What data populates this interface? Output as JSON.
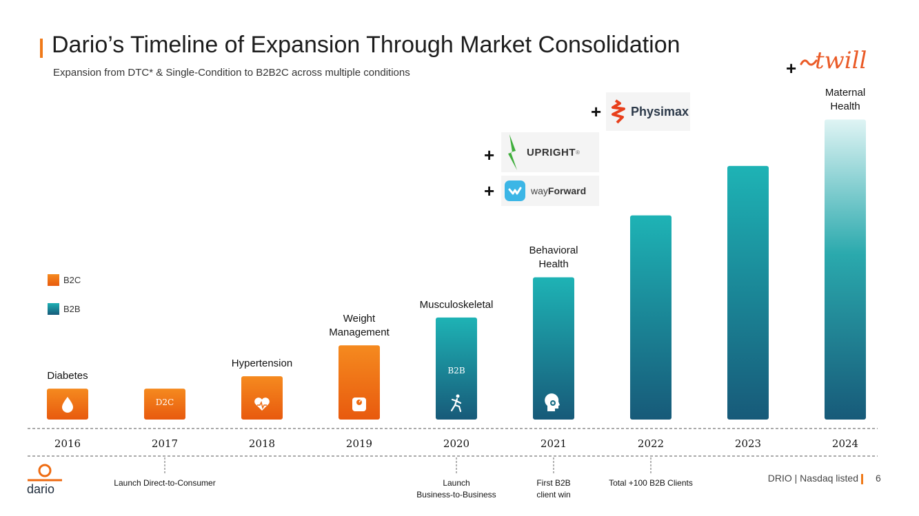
{
  "header": {
    "title": "Dario’s Timeline of Expansion Through Market Consolidation",
    "subtitle": "Expansion from DTC* & Single-Condition to B2B2C across multiple conditions"
  },
  "legend": [
    {
      "label": "B2C",
      "color": "#ee6a10"
    },
    {
      "label": "B2B",
      "color": "#1a8a96"
    }
  ],
  "chart_data": {
    "type": "bar",
    "title": "Dario’s Timeline of Expansion Through Market Consolidation",
    "xlabel": "",
    "ylabel": "",
    "categories": [
      "2016",
      "2017",
      "2018",
      "2019",
      "2020",
      "2021",
      "2022",
      "2023",
      "2024"
    ],
    "values": [
      1,
      1,
      1.4,
      2.4,
      3.3,
      4.6,
      6.6,
      8.2,
      9.7
    ],
    "ylim": [
      0,
      10
    ],
    "series_type": [
      "B2C",
      "B2C",
      "B2C",
      "B2C",
      "B2B",
      "B2B",
      "B2B",
      "B2B",
      "B2B"
    ],
    "condition_labels": [
      "Diabetes",
      "",
      "Hypertension",
      "Weight\nManagement",
      "Musculoskeletal",
      "Behavioral\nHealth",
      "",
      "",
      "Maternal\nHealth"
    ],
    "bar_text": [
      "",
      "D2C",
      "",
      "",
      "B2B",
      "",
      "",
      "",
      ""
    ],
    "bar_icons": [
      "drop-icon",
      "",
      "heart-pulse-icon",
      "scale-icon",
      "runner-icon",
      "brain-head-icon",
      "",
      "",
      ""
    ]
  },
  "acquisitions": [
    {
      "plus": "+",
      "name": "wayForward",
      "name_prefix": "way",
      "name_suffix": "Forward"
    },
    {
      "plus": "+",
      "name": "UPRIGHT",
      "mark": "®"
    },
    {
      "plus": "+",
      "name": "Physimax"
    },
    {
      "plus": "+",
      "name": "twill"
    }
  ],
  "milestones": [
    {
      "year": "2017",
      "text": "Launch Direct-to-Consumer"
    },
    {
      "year": "2020",
      "text": "Launch\nBusiness-to-Business"
    },
    {
      "year": "2021",
      "text": "First B2B\nclient win"
    },
    {
      "year": "2022",
      "text": "Total +100 B2B Clients"
    }
  ],
  "footer": {
    "logo_text": "dario",
    "text": "DRIO | Nasdaq listed",
    "page": "6"
  }
}
